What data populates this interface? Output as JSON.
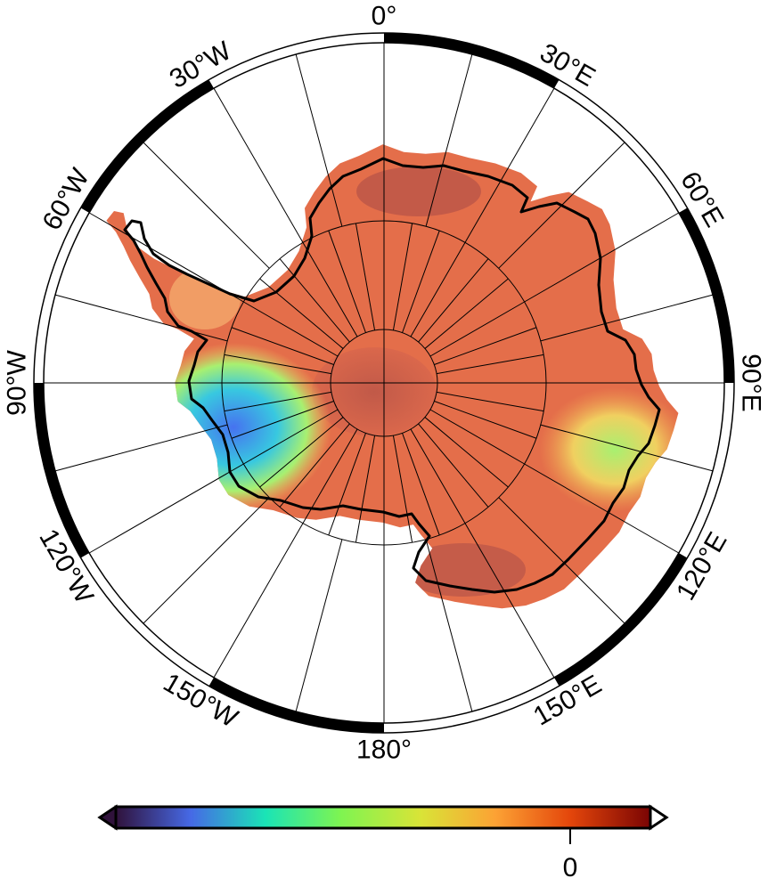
{
  "map": {
    "projection": "south-polar-stereographic",
    "longitude_labels": [
      {
        "lon": 0,
        "text": "0°"
      },
      {
        "lon": 30,
        "text": "30°E"
      },
      {
        "lon": 60,
        "text": "60°E"
      },
      {
        "lon": 90,
        "text": "90°E"
      },
      {
        "lon": 120,
        "text": "120°E"
      },
      {
        "lon": 150,
        "text": "150°E"
      },
      {
        "lon": 180,
        "text": "180°"
      },
      {
        "lon": -150,
        "text": "150°W"
      },
      {
        "lon": -120,
        "text": "120°W"
      },
      {
        "lon": -90,
        "text": "90°W"
      },
      {
        "lon": -60,
        "text": "60°W"
      },
      {
        "lon": -30,
        "text": "30°W"
      }
    ],
    "meridian_step_outer_deg": 15,
    "meridian_step_inner_deg": 10,
    "colors": {
      "land_field": "#e46e4a",
      "land_field_dark": "#b85448",
      "low_anomaly": "#4672f0",
      "mid_anomaly": "#8ef07a",
      "coastline": "#000000",
      "frame": "#000000"
    }
  },
  "colorbar": {
    "colormap": "turbo",
    "colors": [
      "#30123b",
      "#4669e6",
      "#1ae4b6",
      "#7ef451",
      "#d9e437",
      "#fca234",
      "#e4460b",
      "#7a0403"
    ],
    "tick_labels": [
      "0"
    ],
    "tick_position_fraction": 0.85,
    "extends": "both"
  }
}
